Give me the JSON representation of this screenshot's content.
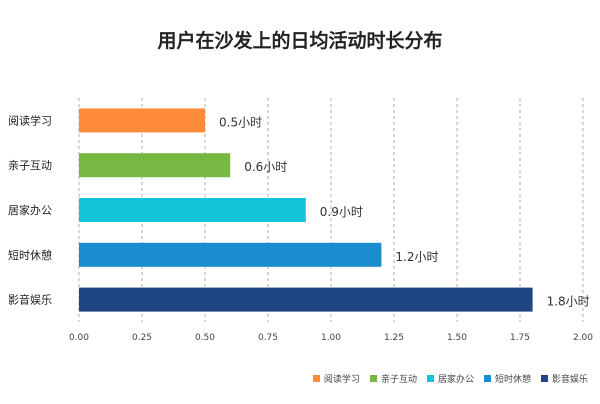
{
  "chart_data": {
    "type": "bar",
    "orientation": "horizontal",
    "title": "用户在沙发上的日均活动时长分布",
    "categories": [
      "阅读学习",
      "亲子互动",
      "居家办公",
      "短时休憩",
      "影音娱乐"
    ],
    "values": [
      0.5,
      0.6,
      0.9,
      1.2,
      1.8
    ],
    "data_labels": [
      "0.5小时",
      "0.6小时",
      "0.9小时",
      "1.2小时",
      "1.8小时"
    ],
    "colors": [
      "#fd8b3a",
      "#77b843",
      "#12c4d5",
      "#1a8cd0",
      "#1e4683"
    ],
    "xlim": [
      0,
      2.0
    ],
    "xticks": [
      "0.00",
      "0.25",
      "0.50",
      "0.75",
      "1.00",
      "1.25",
      "1.50",
      "1.75",
      "2.00"
    ],
    "grid": "vertical dashed",
    "legend": "bottom-right"
  }
}
